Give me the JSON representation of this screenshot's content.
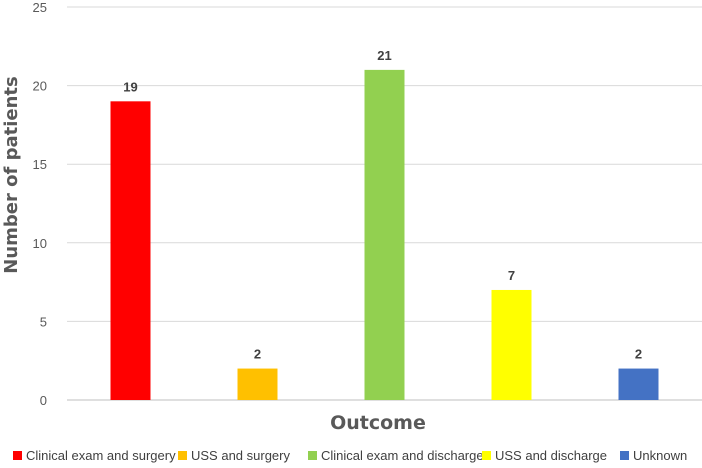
{
  "chart_data": {
    "type": "bar",
    "categories": [
      "Clinical exam and surgery",
      "USS and surgery",
      "Clinical exam and discharge",
      "USS and discharge",
      "Unknown"
    ],
    "values": [
      19,
      2,
      21,
      7,
      2
    ],
    "colors": [
      "#ff0000",
      "#ffc000",
      "#92d050",
      "#ffff00",
      "#4472c4"
    ],
    "xlabel": "Outcome",
    "ylabel": "Number of patients",
    "ylim": [
      0,
      25
    ],
    "yticks": [
      0,
      5,
      10,
      15,
      20,
      25
    ],
    "grid": true,
    "legend": "bottom",
    "data_labels": true
  }
}
